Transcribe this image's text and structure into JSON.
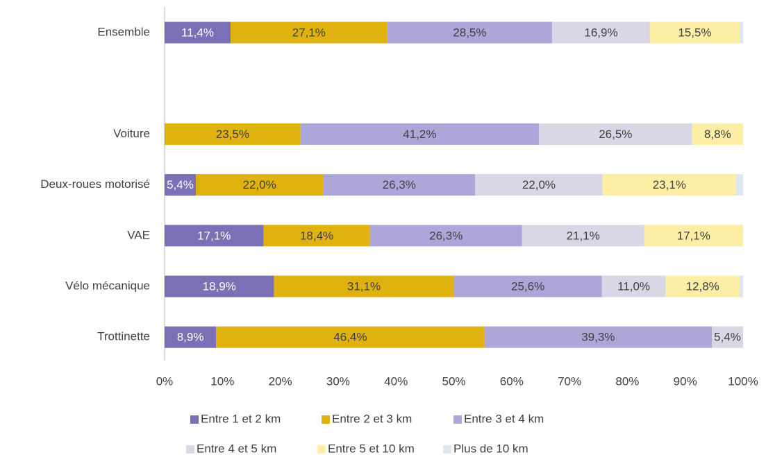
{
  "chart_data": {
    "type": "stacked-bar-horizontal",
    "categories": [
      "Ensemble",
      null,
      "Voiture",
      "Deux-roues motorisé",
      "VAE",
      "Vélo mécanique",
      "Trottinette"
    ],
    "series": [
      {
        "name": "Entre 1 et 2 km",
        "color": "#7b6fb5",
        "values": [
          11.4,
          null,
          0,
          5.4,
          17.1,
          18.9,
          8.9
        ],
        "value_labels": [
          "11,4%",
          null,
          null,
          "5,4%",
          "17,1%",
          "18,9%",
          "8,9%"
        ]
      },
      {
        "name": "Entre 2 et 3 km",
        "color": "#e0b210",
        "values": [
          27.1,
          null,
          23.5,
          22.0,
          18.4,
          31.1,
          46.4
        ],
        "value_labels": [
          "27,1%",
          null,
          "23,5%",
          "22,0%",
          "18,4%",
          "31,1%",
          "46,4%"
        ]
      },
      {
        "name": "Entre 3 et 4 km",
        "color": "#ada6d8",
        "values": [
          28.5,
          null,
          41.2,
          26.3,
          26.3,
          25.6,
          39.3
        ],
        "value_labels": [
          "28,5%",
          null,
          "41,2%",
          "26,3%",
          "26,3%",
          "25,6%",
          "39,3%"
        ]
      },
      {
        "name": "Entre 4 et 5 km",
        "color": "#d9d6e6",
        "values": [
          16.9,
          null,
          26.5,
          22.0,
          21.1,
          11.0,
          5.4
        ],
        "value_labels": [
          "16,9%",
          null,
          "26,5%",
          "22,0%",
          "21,1%",
          "11,0%",
          "5,4%"
        ]
      },
      {
        "name": "Entre 5 et 10 km",
        "color": "#fdeea6",
        "values": [
          15.5,
          null,
          8.8,
          23.1,
          17.1,
          12.8,
          0
        ],
        "value_labels": [
          "15,5%",
          null,
          "8,8%",
          "23,1%",
          "17,1%",
          "12,8%",
          null
        ]
      },
      {
        "name": "Plus de 10 km",
        "color": "#dde7f1",
        "values": [
          0.6,
          null,
          0,
          1.2,
          0,
          0.6,
          0
        ]
      }
    ],
    "xlim": [
      0,
      100
    ],
    "xticks": [
      {
        "value": 0,
        "label": "0%"
      },
      {
        "value": 10,
        "label": "10%"
      },
      {
        "value": 20,
        "label": "20%"
      },
      {
        "value": 30,
        "label": "30%"
      },
      {
        "value": 40,
        "label": "40%"
      },
      {
        "value": 50,
        "label": "50%"
      },
      {
        "value": 60,
        "label": "60%"
      },
      {
        "value": 70,
        "label": "70%"
      },
      {
        "value": 80,
        "label": "80%"
      },
      {
        "value": 90,
        "label": "90%"
      },
      {
        "value": 100,
        "label": "100%"
      }
    ],
    "legend": "bottom"
  }
}
